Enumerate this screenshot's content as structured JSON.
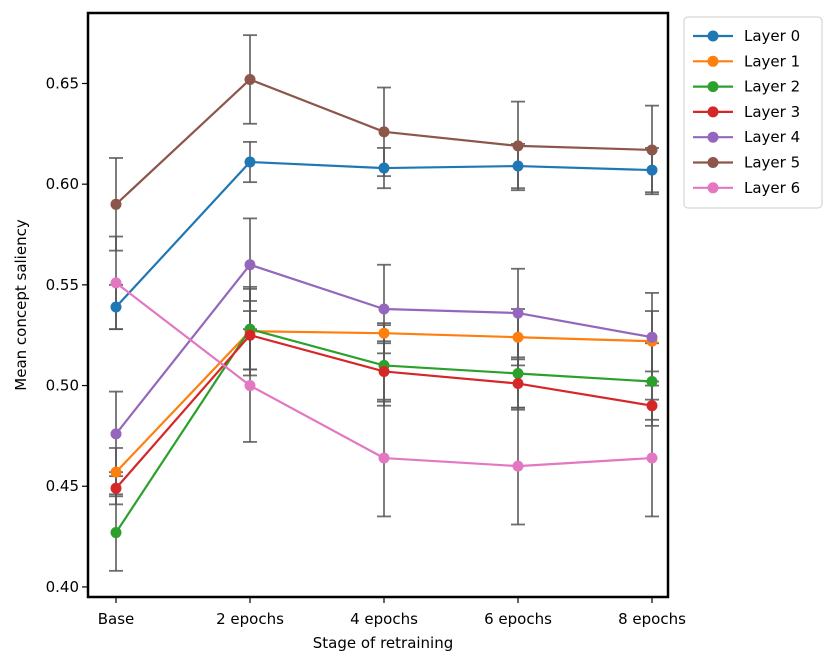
{
  "chart_data": {
    "type": "line",
    "title": "",
    "xlabel": "Stage of retraining",
    "ylabel": "Mean concept saliency",
    "categories": [
      "Base",
      "2 epochs",
      "4 epochs",
      "6 epochs",
      "8 epochs"
    ],
    "ylim": [
      0.395,
      0.685
    ],
    "yticks": [
      0.4,
      0.45,
      0.5,
      0.55,
      0.6,
      0.65
    ],
    "ytick_labels": [
      "0.40",
      "0.45",
      "0.50",
      "0.55",
      "0.60",
      "0.65"
    ],
    "legend_position": "outside-top-right",
    "errorbar_color": "#555555",
    "series": [
      {
        "name": "Layer 0",
        "color": "#1f77b4",
        "values": [
          0.539,
          0.611,
          0.608,
          0.609,
          0.607
        ],
        "errors": [
          0.011,
          0.01,
          0.01,
          0.011,
          0.011
        ]
      },
      {
        "name": "Layer 1",
        "color": "#ff7f0e",
        "values": [
          0.457,
          0.527,
          0.526,
          0.524,
          0.522
        ],
        "errors": [
          0.012,
          0.022,
          0.005,
          0.014,
          0.015
        ]
      },
      {
        "name": "Layer 2",
        "color": "#2ca02c",
        "values": [
          0.427,
          0.528,
          0.51,
          0.506,
          0.502
        ],
        "errors": [
          0.019,
          0.02,
          0.02,
          0.018,
          0.019
        ]
      },
      {
        "name": "Layer 3",
        "color": "#d62728",
        "values": [
          0.449,
          0.525,
          0.507,
          0.501,
          0.49
        ],
        "errors": [
          0.008,
          0.017,
          0.015,
          0.012,
          0.01
        ]
      },
      {
        "name": "Layer 4",
        "color": "#9467bd",
        "values": [
          0.476,
          0.56,
          0.538,
          0.536,
          0.524
        ],
        "errors": [
          0.021,
          0.023,
          0.022,
          0.022,
          0.022
        ]
      },
      {
        "name": "Layer 5",
        "color": "#8c564b",
        "values": [
          0.59,
          0.652,
          0.626,
          0.619,
          0.617
        ],
        "errors": [
          0.023,
          0.022,
          0.022,
          0.022,
          0.022
        ]
      },
      {
        "name": "Layer 6",
        "color": "#e377c2",
        "values": [
          0.551,
          0.5,
          0.464,
          0.46,
          0.464
        ],
        "errors": [
          0.023,
          0.028,
          0.029,
          0.029,
          0.029
        ]
      }
    ]
  }
}
